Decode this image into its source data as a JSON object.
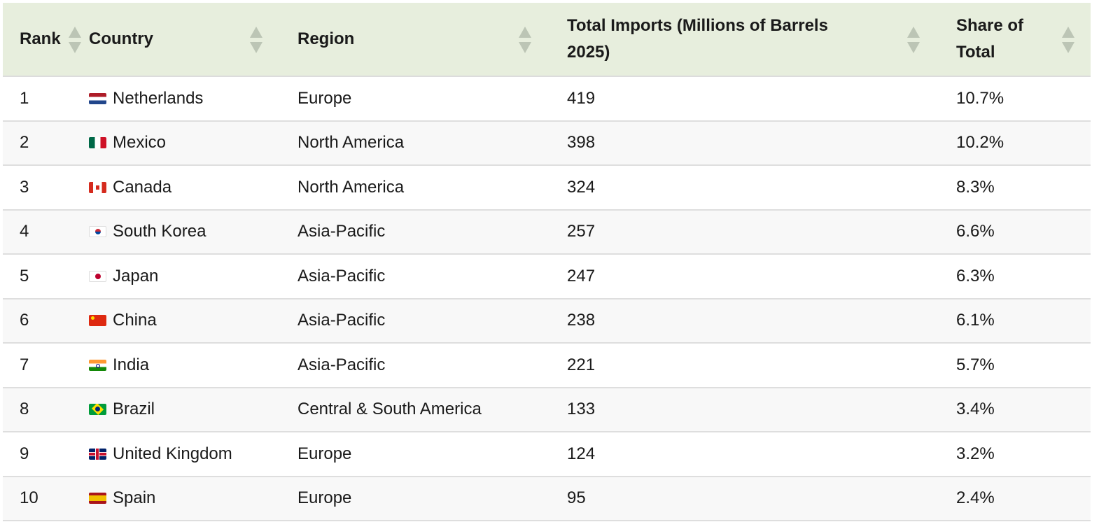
{
  "table": {
    "columns": [
      {
        "label": "Rank"
      },
      {
        "label": "Country"
      },
      {
        "label": "Region"
      },
      {
        "label": "Total Imports (Millions of Barrels 2025)"
      },
      {
        "label": "Share of Total"
      }
    ],
    "colors": {
      "header_bg": "#e7eedd",
      "sort_icon": "#bcc5b5",
      "row_alt_bg": "#f8f8f8"
    },
    "rows": [
      {
        "rank": "1",
        "flag": "nl",
        "flag_icon": "netherlands-flag-icon",
        "country": "Netherlands",
        "region": "Europe",
        "imports": "419",
        "share": "10.7%"
      },
      {
        "rank": "2",
        "flag": "mx",
        "flag_icon": "mexico-flag-icon",
        "country": "Mexico",
        "region": "North America",
        "imports": "398",
        "share": "10.2%"
      },
      {
        "rank": "3",
        "flag": "ca",
        "flag_icon": "canada-flag-icon",
        "country": "Canada",
        "region": "North America",
        "imports": "324",
        "share": "8.3%"
      },
      {
        "rank": "4",
        "flag": "kr",
        "flag_icon": "south-korea-flag-icon",
        "country": "South Korea",
        "region": "Asia-Pacific",
        "imports": "257",
        "share": "6.6%"
      },
      {
        "rank": "5",
        "flag": "jp",
        "flag_icon": "japan-flag-icon",
        "country": "Japan",
        "region": "Asia-Pacific",
        "imports": "247",
        "share": "6.3%"
      },
      {
        "rank": "6",
        "flag": "cn",
        "flag_icon": "china-flag-icon",
        "country": "China",
        "region": "Asia-Pacific",
        "imports": "238",
        "share": "6.1%"
      },
      {
        "rank": "7",
        "flag": "in",
        "flag_icon": "india-flag-icon",
        "country": "India",
        "region": "Asia-Pacific",
        "imports": "221",
        "share": "5.7%"
      },
      {
        "rank": "8",
        "flag": "br",
        "flag_icon": "brazil-flag-icon",
        "country": "Brazil",
        "region": "Central & South America",
        "imports": "133",
        "share": "3.4%"
      },
      {
        "rank": "9",
        "flag": "gb",
        "flag_icon": "united-kingdom-flag-icon",
        "country": "United Kingdom",
        "region": "Europe",
        "imports": "124",
        "share": "3.2%"
      },
      {
        "rank": "10",
        "flag": "es",
        "flag_icon": "spain-flag-icon",
        "country": "Spain",
        "region": "Europe",
        "imports": "95",
        "share": "2.4%"
      }
    ]
  }
}
